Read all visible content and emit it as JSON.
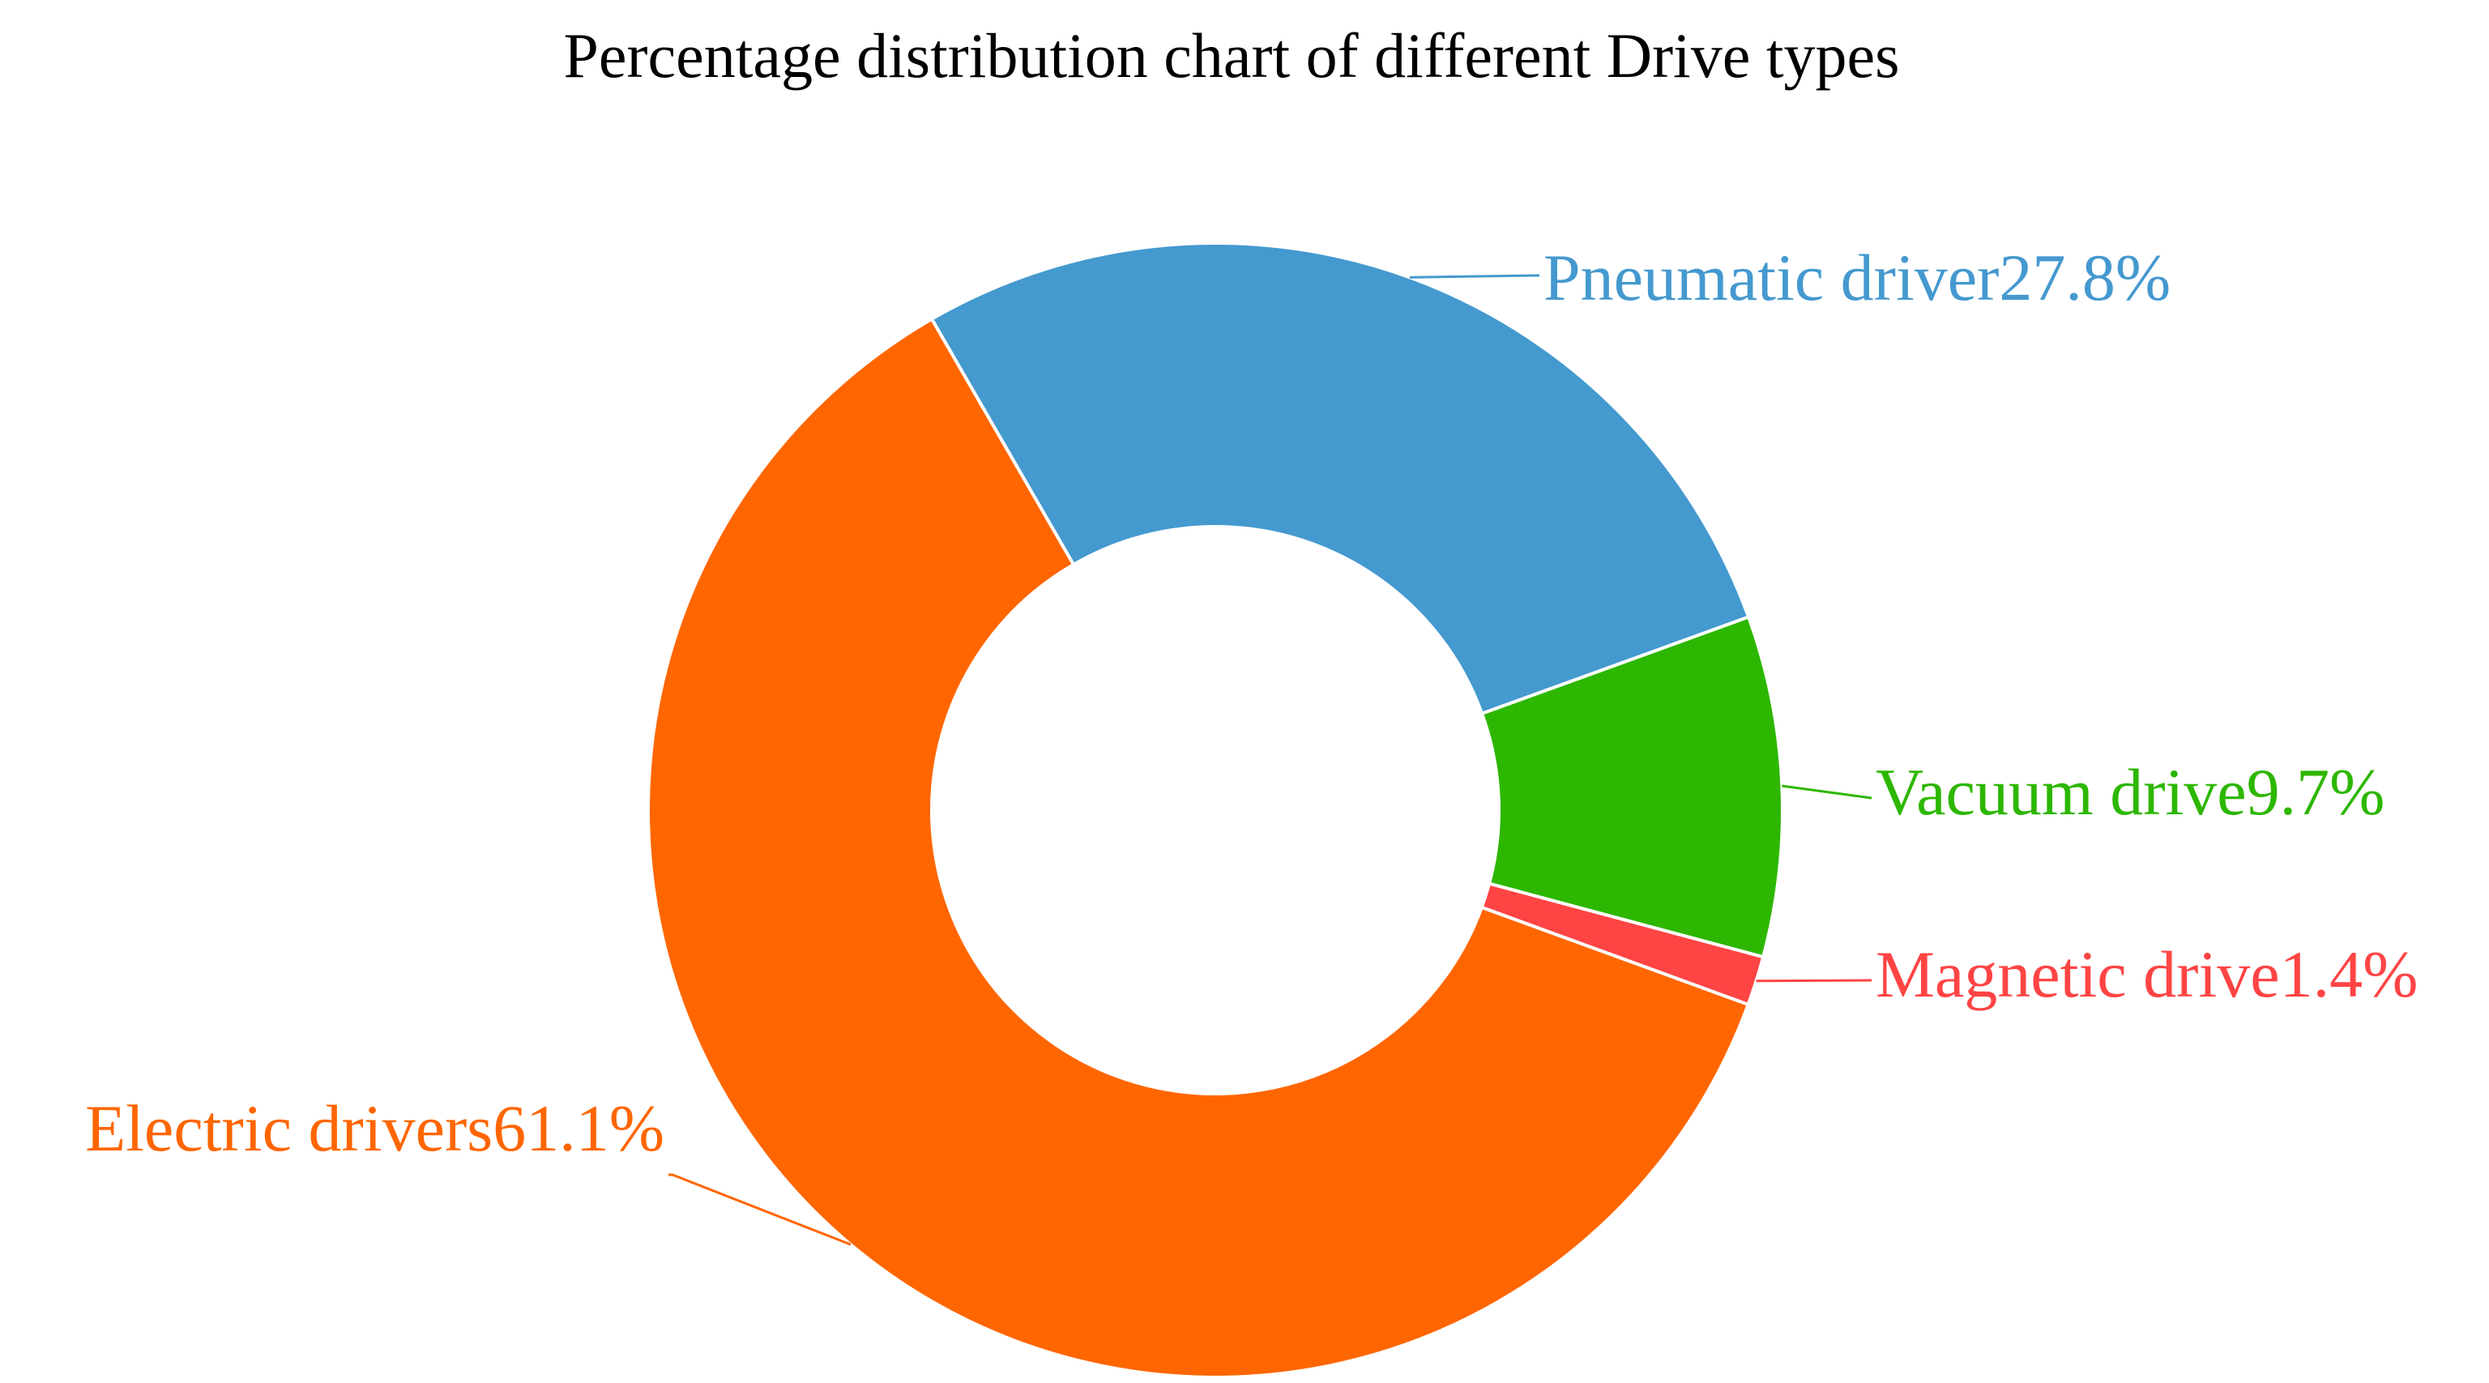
{
  "chart_data": {
    "type": "pie",
    "style": "donut",
    "title": "Percentage distribution chart of different Drive types",
    "slices": [
      {
        "name": "Pneumatic driver",
        "value": 27.8,
        "label": "Pneumatic driver27.8%",
        "color": "#4499cf"
      },
      {
        "name": "Vacuum drive",
        "value": 9.7,
        "label": "Vacuum drive9.7%",
        "color": "#2db700"
      },
      {
        "name": "Magnetic drive",
        "value": 1.4,
        "label": "Magnetic drive1.4%",
        "color": "#ff4444"
      },
      {
        "name": "Electric drivers",
        "value": 61.1,
        "label": "Electric drivers61.1%",
        "color": "#ff6600"
      }
    ]
  }
}
